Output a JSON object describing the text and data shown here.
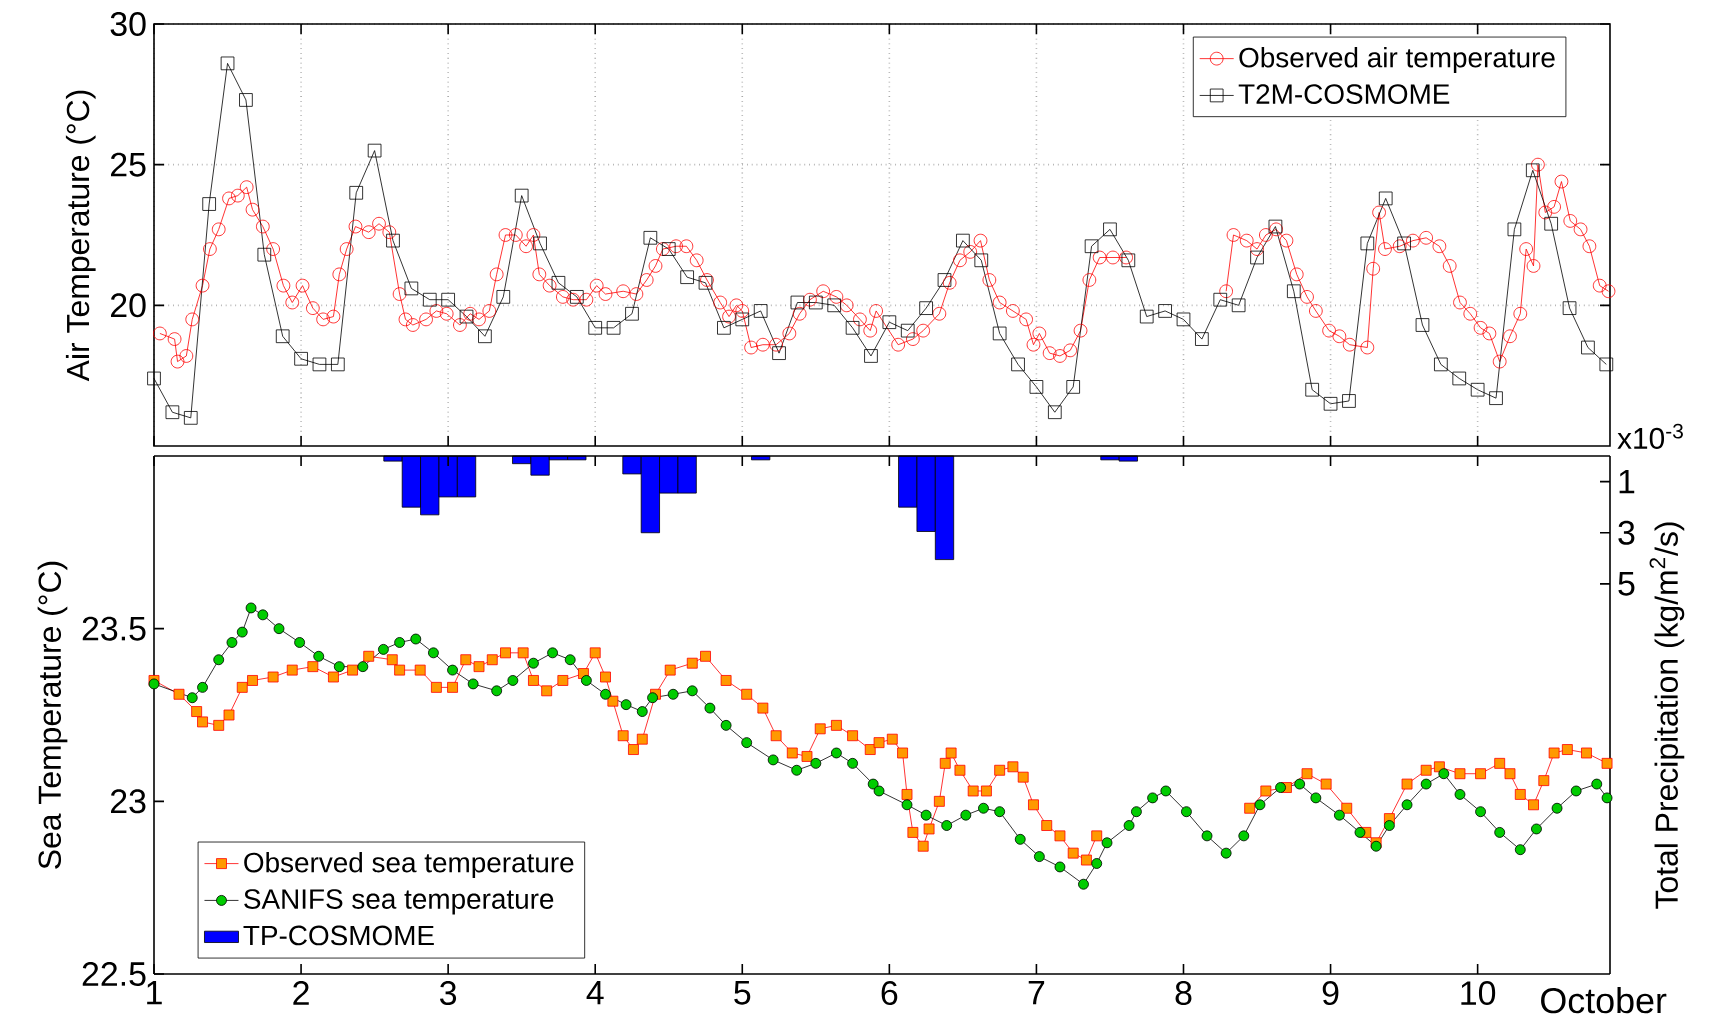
{
  "chart_data": [
    {
      "type": "line",
      "xlim": [
        1,
        10.9
      ],
      "xticks": [
        1,
        2,
        3,
        4,
        5,
        6,
        7,
        8,
        9,
        10
      ],
      "ylim": [
        15,
        30
      ],
      "yticks": [
        20,
        25,
        30
      ],
      "ylabel": "Air Temperature (°C)",
      "grid": true,
      "legend": "top right",
      "tick_labels": "y",
      "series": [
        {
          "name": "Observed air temperature",
          "color": "#ff0000",
          "marker": "circle",
          "x": [
            1.04,
            1.14,
            1.16,
            1.22,
            1.26,
            1.33,
            1.38,
            1.44,
            1.51,
            1.57,
            1.63,
            1.67,
            1.74,
            1.81,
            1.88,
            1.94,
            2.01,
            2.08,
            2.15,
            2.22,
            2.26,
            2.31,
            2.37,
            2.46,
            2.53,
            2.6,
            2.67,
            2.71,
            2.76,
            2.85,
            2.92,
            2.99,
            3.08,
            3.15,
            3.21,
            3.28,
            3.33,
            3.39,
            3.46,
            3.53,
            3.58,
            3.62,
            3.69,
            3.78,
            3.85,
            3.94,
            4.01,
            4.07,
            4.19,
            4.28,
            4.35,
            4.41,
            4.46,
            4.55,
            4.62,
            4.69,
            4.76,
            4.85,
            4.91,
            4.96,
            5.0,
            5.06,
            5.14,
            5.23,
            5.32,
            5.39,
            5.46,
            5.55,
            5.64,
            5.71,
            5.8,
            5.87,
            5.91,
            6.06,
            6.16,
            6.23,
            6.34,
            6.41,
            6.48,
            6.55,
            6.62,
            6.68,
            6.75,
            6.84,
            6.93,
            6.98,
            7.02,
            7.09,
            7.16,
            7.23,
            7.3,
            7.36,
            7.43,
            7.52,
            7.61,
            8.0,
            8.29,
            8.34,
            8.43,
            8.5,
            8.56,
            8.63,
            8.7,
            8.77,
            8.84,
            8.9,
            8.99,
            9.06,
            9.13,
            9.25,
            9.29,
            9.33,
            9.37,
            9.47,
            9.56,
            9.65,
            9.74,
            9.81,
            9.88,
            9.95,
            10.02,
            10.08,
            10.15,
            10.22,
            10.29,
            10.33,
            10.38,
            10.41,
            10.46,
            10.52,
            10.57,
            10.63,
            10.7,
            10.76,
            10.83,
            10.89
          ],
          "values": [
            19.0,
            18.8,
            18.0,
            18.2,
            19.5,
            20.7,
            22.0,
            22.7,
            23.8,
            23.9,
            24.2,
            23.4,
            22.8,
            22.0,
            20.7,
            20.1,
            20.7,
            19.9,
            19.5,
            19.6,
            21.1,
            22.0,
            22.8,
            22.6,
            22.9,
            22.6,
            20.4,
            19.5,
            19.3,
            19.5,
            19.8,
            19.7,
            19.3,
            19.7,
            19.5,
            19.8,
            21.1,
            22.5,
            22.5,
            22.1,
            22.5,
            21.1,
            20.7,
            20.3,
            20.2,
            20.2,
            20.7,
            20.4,
            20.5,
            20.4,
            20.9,
            21.4,
            22.0,
            22.1,
            22.1,
            21.6,
            20.9,
            20.1,
            19.6,
            20.0,
            19.8,
            18.5,
            18.6,
            18.6,
            19.0,
            19.7,
            20.2,
            20.5,
            20.3,
            20.0,
            19.5,
            19.1,
            19.8,
            18.6,
            18.8,
            19.1,
            19.7,
            20.8,
            21.6,
            21.9,
            22.3,
            20.9,
            20.1,
            19.8,
            19.5,
            18.6,
            19.0,
            18.3,
            18.2,
            18.4,
            19.1,
            20.9,
            21.7,
            21.7,
            21.7,
            null,
            20.5,
            22.5,
            22.3,
            22.0,
            22.5,
            22.7,
            22.3,
            21.1,
            20.3,
            19.8,
            19.1,
            18.9,
            18.6,
            18.5,
            21.3,
            23.3,
            22.0,
            22.1,
            22.3,
            22.4,
            22.1,
            21.4,
            20.1,
            19.7,
            19.2,
            19.0,
            18.0,
            18.9,
            19.7,
            22.0,
            21.4,
            25.0,
            23.3,
            23.5,
            24.4,
            23.0,
            22.7,
            22.1,
            20.7,
            20.5
          ]
        },
        {
          "name": "T2M-COSMOME",
          "color": "#000000",
          "marker": "square",
          "x": [
            1.0,
            1.125,
            1.25,
            1.375,
            1.5,
            1.625,
            1.75,
            1.875,
            2.0,
            2.125,
            2.25,
            2.375,
            2.5,
            2.625,
            2.75,
            2.875,
            3.0,
            3.125,
            3.25,
            3.375,
            3.5,
            3.625,
            3.75,
            3.875,
            4.0,
            4.125,
            4.25,
            4.375,
            4.5,
            4.625,
            4.75,
            4.875,
            5.0,
            5.125,
            5.25,
            5.375,
            5.5,
            5.625,
            5.75,
            5.875,
            6.0,
            6.125,
            6.25,
            6.375,
            6.5,
            6.625,
            6.75,
            6.875,
            7.0,
            7.125,
            7.25,
            7.375,
            7.5,
            7.625,
            7.75,
            7.875,
            8.0,
            8.125,
            8.25,
            8.375,
            8.5,
            8.625,
            8.75,
            8.875,
            9.0,
            9.125,
            9.25,
            9.375,
            9.5,
            9.625,
            9.75,
            9.875,
            10.0,
            10.125,
            10.25,
            10.375,
            10.5,
            10.625,
            10.75,
            10.875
          ],
          "values": [
            17.4,
            16.2,
            16.0,
            23.6,
            28.6,
            27.3,
            21.8,
            18.9,
            18.1,
            17.9,
            17.9,
            24.0,
            25.5,
            22.3,
            20.6,
            20.2,
            20.2,
            19.6,
            18.9,
            20.3,
            23.9,
            22.2,
            20.8,
            20.3,
            19.2,
            19.2,
            19.7,
            22.4,
            22.0,
            21.0,
            20.8,
            19.2,
            19.5,
            19.8,
            18.3,
            20.1,
            20.1,
            20.0,
            19.2,
            18.2,
            19.4,
            19.1,
            19.9,
            20.9,
            22.3,
            21.6,
            19.0,
            17.9,
            17.1,
            16.2,
            17.1,
            22.1,
            22.7,
            21.6,
            19.6,
            19.8,
            19.5,
            18.8,
            20.2,
            20.0,
            21.7,
            22.8,
            20.5,
            17.0,
            16.5,
            16.6,
            22.2,
            23.8,
            22.2,
            19.3,
            17.9,
            17.4,
            17.0,
            16.7,
            22.7,
            24.8,
            22.9,
            19.9,
            18.5,
            17.9
          ]
        }
      ]
    },
    {
      "type": "line",
      "xlim": [
        1,
        10.9
      ],
      "xticks": [
        1,
        2,
        3,
        4,
        5,
        6,
        7,
        8,
        9,
        10
      ],
      "xlabel": "October",
      "ylim": [
        22.5,
        24
      ],
      "yticks": [
        22.5,
        23,
        23.5
      ],
      "ylabel": "Sea Temperature (°C)",
      "y2lim": [
        20.25,
        0
      ],
      "y2ticks": [
        1,
        3,
        5
      ],
      "y2label": "Total Precipitation (kg/m$^{2}$/s)",
      "legend": "bottom left",
      "annotations": [
        "x10$^{-3}$"
      ],
      "series": [
        {
          "name": "Observed sea temperature",
          "color": "#ff9900",
          "marker": "square",
          "x": [
            1.0,
            1.17,
            1.29,
            1.33,
            1.44,
            1.51,
            1.6,
            1.67,
            1.81,
            1.94,
            2.08,
            2.22,
            2.35,
            2.46,
            2.62,
            2.67,
            2.81,
            2.92,
            3.03,
            3.12,
            3.21,
            3.3,
            3.39,
            3.51,
            3.58,
            3.67,
            3.78,
            3.92,
            4.0,
            4.07,
            4.12,
            4.19,
            4.26,
            4.32,
            4.41,
            4.51,
            4.66,
            4.75,
            4.89,
            5.03,
            5.14,
            5.23,
            5.34,
            5.44,
            5.53,
            5.64,
            5.75,
            5.87,
            5.93,
            6.02,
            6.09,
            6.12,
            6.16,
            6.23,
            6.27,
            6.34,
            6.38,
            6.42,
            6.48,
            6.57,
            6.66,
            6.75,
            6.84,
            6.91,
            6.98,
            7.07,
            7.16,
            7.25,
            7.34,
            7.41,
            8.0,
            8.45,
            8.56,
            8.7,
            8.84,
            8.97,
            9.11,
            9.24,
            9.31,
            9.4,
            9.52,
            9.65,
            9.74,
            9.88,
            10.02,
            10.15,
            10.22,
            10.29,
            10.38,
            10.45,
            10.52,
            10.61,
            10.74,
            10.88
          ],
          "values": [
            23.35,
            23.31,
            23.26,
            23.23,
            23.22,
            23.25,
            23.33,
            23.35,
            23.36,
            23.38,
            23.39,
            23.36,
            23.38,
            23.42,
            23.41,
            23.38,
            23.38,
            23.33,
            23.33,
            23.41,
            23.39,
            23.41,
            23.43,
            23.43,
            23.35,
            23.32,
            23.35,
            23.37,
            23.43,
            23.36,
            23.29,
            23.19,
            23.15,
            23.18,
            23.31,
            23.38,
            23.4,
            23.42,
            23.35,
            23.31,
            23.27,
            23.19,
            23.14,
            23.13,
            23.21,
            23.22,
            23.19,
            23.15,
            23.17,
            23.18,
            23.14,
            23.02,
            22.91,
            22.87,
            22.92,
            23.0,
            23.11,
            23.14,
            23.09,
            23.03,
            23.03,
            23.09,
            23.1,
            23.07,
            22.99,
            22.93,
            22.9,
            22.85,
            22.83,
            22.9,
            null,
            22.98,
            23.03,
            23.04,
            23.08,
            23.05,
            22.98,
            22.91,
            22.88,
            22.95,
            23.05,
            23.09,
            23.1,
            23.08,
            23.08,
            23.11,
            23.08,
            23.02,
            22.99,
            23.06,
            23.14,
            23.15,
            23.14,
            23.11
          ]
        },
        {
          "name": "SANIFS sea temperature",
          "color": "#00cc00",
          "marker": "circle",
          "x": [
            1.0,
            1.26,
            1.33,
            1.44,
            1.53,
            1.6,
            1.66,
            1.74,
            1.85,
            1.99,
            2.12,
            2.26,
            2.42,
            2.56,
            2.67,
            2.78,
            2.9,
            3.03,
            3.17,
            3.33,
            3.44,
            3.58,
            3.71,
            3.83,
            3.94,
            4.07,
            4.21,
            4.32,
            4.39,
            4.53,
            4.66,
            4.78,
            4.89,
            5.03,
            5.21,
            5.37,
            5.5,
            5.64,
            5.75,
            5.89,
            5.93,
            6.12,
            6.25,
            6.39,
            6.52,
            6.64,
            6.75,
            6.89,
            7.02,
            7.16,
            7.32,
            7.41,
            7.48,
            7.63,
            7.68,
            7.79,
            7.88,
            8.02,
            8.16,
            8.29,
            8.41,
            8.52,
            8.66,
            8.79,
            8.9,
            9.06,
            9.2,
            9.31,
            9.4,
            9.52,
            9.65,
            9.77,
            9.88,
            10.02,
            10.15,
            10.29,
            10.4,
            10.54,
            10.67,
            10.81,
            10.88
          ],
          "values": [
            23.34,
            23.3,
            23.33,
            23.41,
            23.46,
            23.49,
            23.56,
            23.54,
            23.5,
            23.46,
            23.42,
            23.39,
            23.39,
            23.44,
            23.46,
            23.47,
            23.43,
            23.38,
            23.34,
            23.32,
            23.35,
            23.4,
            23.43,
            23.41,
            23.35,
            23.31,
            23.28,
            23.26,
            23.3,
            23.31,
            23.32,
            23.27,
            23.22,
            23.17,
            23.12,
            23.09,
            23.11,
            23.14,
            23.11,
            23.05,
            23.03,
            22.99,
            22.96,
            22.93,
            22.96,
            22.98,
            22.97,
            22.89,
            22.84,
            22.81,
            22.76,
            22.82,
            22.88,
            22.93,
            22.97,
            23.01,
            23.03,
            22.97,
            22.9,
            22.85,
            22.9,
            22.99,
            23.04,
            23.05,
            23.01,
            22.96,
            22.91,
            22.87,
            22.93,
            22.99,
            23.05,
            23.08,
            23.02,
            22.97,
            22.91,
            22.86,
            22.92,
            22.98,
            23.03,
            23.05,
            23.01
          ]
        },
        {
          "name": "TP-COSMOME",
          "type": "bar",
          "axis": "y2",
          "color": "#0000ff",
          "x": [
            2.625,
            2.75,
            2.875,
            3.0,
            3.125,
            3.5,
            3.625,
            3.75,
            3.875,
            4.25,
            4.375,
            4.5,
            4.625,
            5.125,
            6.125,
            6.25,
            6.375,
            7.5,
            7.625
          ],
          "values": [
            0.2,
            2.0,
            2.3,
            1.6,
            1.6,
            0.3,
            0.75,
            0.15,
            0.15,
            0.7,
            3.0,
            1.45,
            1.45,
            0.15,
            2.0,
            2.95,
            4.05,
            0.15,
            0.2
          ]
        }
      ]
    }
  ]
}
